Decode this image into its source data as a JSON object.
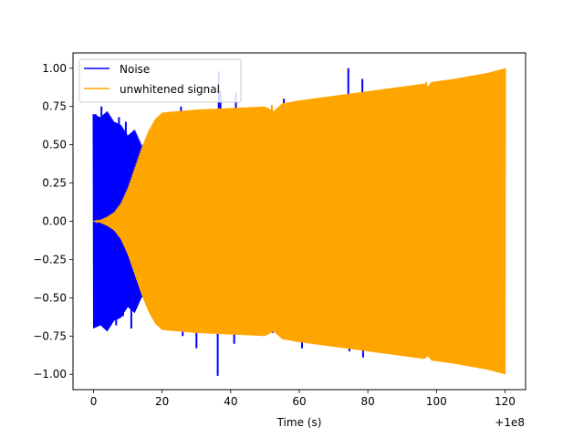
{
  "chart_data": {
    "type": "line",
    "title": "",
    "xlabel": "Time (s)",
    "ylabel": "",
    "xlim": [
      -6,
      126
    ],
    "ylim": [
      -1.1,
      1.1
    ],
    "x_offset_label": "+1e8",
    "x_ticks": [
      0,
      20,
      40,
      60,
      80,
      100,
      120
    ],
    "y_ticks": [
      -1.0,
      -0.75,
      -0.5,
      -0.25,
      0.0,
      0.25,
      0.5,
      0.75,
      1.0
    ],
    "x_tick_labels": [
      "0",
      "20",
      "40",
      "60",
      "80",
      "100",
      "120"
    ],
    "y_tick_labels": [
      "−1.00",
      "−0.75",
      "−0.50",
      "−0.25",
      "0.00",
      "0.25",
      "0.50",
      "0.75",
      "1.00"
    ],
    "grid": false,
    "legend_position": "top-left",
    "series": [
      {
        "name": "Noise",
        "color": "#0000ff",
        "envelope": [
          [
            0.0,
            0.7
          ],
          [
            2.0,
            0.68
          ],
          [
            4.0,
            0.72
          ],
          [
            6.0,
            0.65
          ],
          [
            8.0,
            0.63
          ],
          [
            10.0,
            0.56
          ],
          [
            12.0,
            0.6
          ],
          [
            14.0,
            0.5
          ],
          [
            16.0,
            0.45
          ]
        ],
        "spikes": [
          [
            0.6,
            0.7
          ],
          [
            1.4,
            -0.62
          ],
          [
            2.3,
            0.75
          ],
          [
            3.5,
            -0.6
          ],
          [
            5.0,
            0.6
          ],
          [
            6.6,
            -0.68
          ],
          [
            7.4,
            0.68
          ],
          [
            8.6,
            -0.62
          ],
          [
            9.4,
            0.65
          ],
          [
            11.0,
            -0.7
          ],
          [
            12.5,
            -0.56
          ],
          [
            13.6,
            0.47
          ],
          [
            16.0,
            -0.55
          ],
          [
            18.0,
            0.33
          ],
          [
            21.0,
            -0.66
          ],
          [
            25.5,
            0.75
          ],
          [
            26.0,
            -0.75
          ],
          [
            29.5,
            0.63
          ],
          [
            30.0,
            -0.83
          ],
          [
            35.0,
            0.7
          ],
          [
            36.2,
            -1.01
          ],
          [
            36.5,
            0.98
          ],
          [
            37.0,
            0.85
          ],
          [
            41.0,
            -0.8
          ],
          [
            41.5,
            0.84
          ],
          [
            52.0,
            0.71
          ],
          [
            52.2,
            -0.73
          ],
          [
            55.5,
            0.8
          ],
          [
            55.7,
            -0.75
          ],
          [
            60.5,
            0.78
          ],
          [
            60.8,
            -0.83
          ],
          [
            74.3,
            1.0
          ],
          [
            74.6,
            -0.85
          ],
          [
            78.4,
            0.93
          ],
          [
            78.6,
            -0.89
          ],
          [
            97.0,
            0.79
          ],
          [
            97.3,
            -0.86
          ]
        ]
      },
      {
        "name": "unwhitened signal",
        "color": "#ffa500",
        "envelope": [
          [
            0.0,
            0.0
          ],
          [
            2.0,
            0.01
          ],
          [
            4.0,
            0.03
          ],
          [
            6.0,
            0.06
          ],
          [
            8.0,
            0.12
          ],
          [
            10.0,
            0.22
          ],
          [
            12.0,
            0.35
          ],
          [
            14.0,
            0.48
          ],
          [
            16.0,
            0.59
          ],
          [
            18.0,
            0.67
          ],
          [
            20.0,
            0.71
          ],
          [
            22.0,
            0.715
          ],
          [
            25.0,
            0.72
          ],
          [
            30.0,
            0.73
          ],
          [
            40.0,
            0.74
          ],
          [
            50.0,
            0.75
          ],
          [
            52.5,
            0.72
          ],
          [
            55.0,
            0.77
          ],
          [
            60.0,
            0.79
          ],
          [
            70.0,
            0.82
          ],
          [
            80.0,
            0.85
          ],
          [
            90.0,
            0.88
          ],
          [
            96.5,
            0.9
          ],
          [
            97.5,
            0.88
          ],
          [
            98.5,
            0.91
          ],
          [
            105.0,
            0.93
          ],
          [
            110.0,
            0.95
          ],
          [
            115.0,
            0.97
          ],
          [
            120.0,
            1.0
          ]
        ],
        "spikes": [
          [
            36.3,
            0.74
          ],
          [
            52.0,
            0.76
          ],
          [
            74.3,
            0.83
          ],
          [
            97.0,
            0.91
          ]
        ]
      }
    ]
  }
}
